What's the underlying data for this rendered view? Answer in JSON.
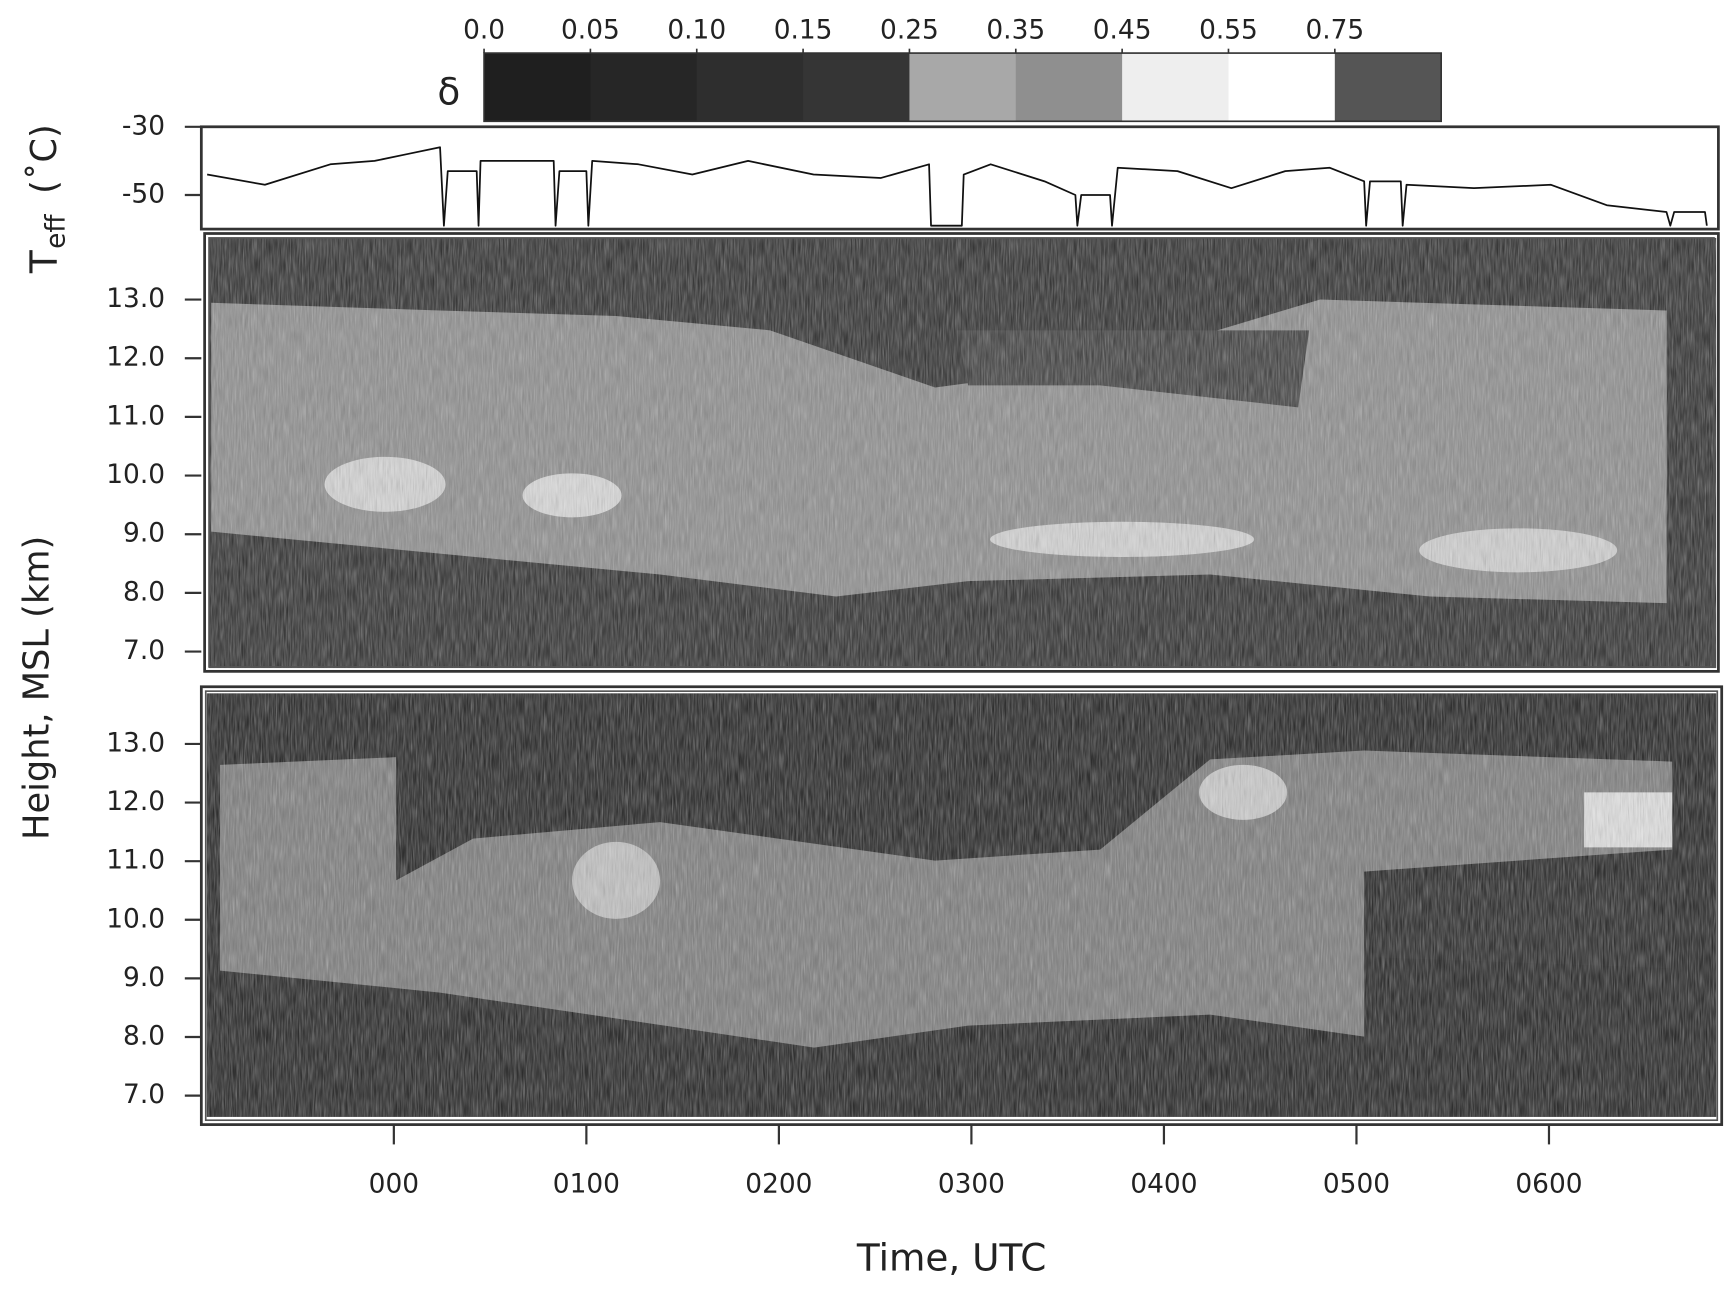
{
  "chart_data": [
    {
      "type": "line",
      "y_label": "T",
      "y_label_sub": "eff",
      "y_label_unit": "(˚C)",
      "color": "#111111",
      "xlim": [
        -1.0,
        6.88
      ],
      "ylim": [
        -60,
        -30
      ],
      "yticks": [
        -30,
        -50
      ],
      "x": [
        -0.97,
        -0.67,
        -0.33,
        -0.1,
        0.07,
        0.24,
        0.26,
        0.28,
        0.43,
        0.44,
        0.45,
        0.7,
        0.83,
        0.84,
        0.86,
        1.0,
        1.01,
        1.03,
        1.27,
        1.55,
        1.84,
        2.18,
        2.53,
        2.78,
        2.79,
        2.95,
        2.96,
        3.1,
        3.38,
        3.54,
        3.55,
        3.57,
        3.72,
        3.73,
        3.76,
        4.07,
        4.35,
        4.63,
        4.86,
        5.04,
        5.05,
        5.07,
        5.23,
        5.24,
        5.26,
        5.61,
        6.01,
        6.3,
        6.61,
        6.63,
        6.65,
        6.81,
        6.82
      ],
      "values": [
        -44,
        -47,
        -41,
        -40,
        -38,
        -36,
        -59,
        -43,
        -43,
        -59,
        -40,
        -40,
        -40,
        -59,
        -43,
        -43,
        -59,
        -40,
        -41,
        -44,
        -40,
        -44,
        -45,
        -41,
        -59,
        -59,
        -44,
        -41,
        -46,
        -50,
        -59,
        -50,
        -50,
        -59,
        -42,
        -43,
        -48,
        -43,
        -42,
        -46,
        -59,
        -46,
        -46,
        -59,
        -47,
        -48,
        -47,
        -53,
        -55,
        -59,
        -55,
        -55,
        -59
      ]
    },
    {
      "type": "image",
      "y_label": "Height, MSL (km)",
      "xlim": [
        -1.0,
        6.88
      ],
      "ylim": [
        6.7,
        14.07
      ],
      "yticks": [
        {
          "value": 13,
          "label": "13.0"
        },
        {
          "value": 12,
          "label": "12.0"
        },
        {
          "value": 11,
          "label": "11.0"
        },
        {
          "value": 10,
          "label": "10.0"
        },
        {
          "value": 9,
          "label": "9.0"
        },
        {
          "value": 8,
          "label": "8.0"
        },
        {
          "value": 7,
          "label": "7.0"
        }
      ],
      "colorbar": {
        "label": "δ",
        "ticks": [
          {
            "value": 0,
            "label": "0.0"
          },
          0.05,
          {
            "value": 0.1,
            "label": "0.10"
          },
          0.15,
          0.25,
          0.35,
          0.45,
          0.55,
          0.75
        ],
        "colors": [
          "#1f1f1f",
          "#262626",
          "#2e2e2e",
          "#353535",
          "#a8a8a8",
          "#8f8f8f",
          "#eeeeee",
          "#ffffff",
          "#555555"
        ]
      }
    },
    {
      "type": "image",
      "x_label": "Time, UTC",
      "xlim": [
        -1.0,
        6.88
      ],
      "ylim": [
        6.6,
        13.9
      ],
      "yticks": [
        {
          "value": 13,
          "label": "13.0"
        },
        {
          "value": 12,
          "label": "12.0"
        },
        {
          "value": 11,
          "label": "11.0"
        },
        {
          "value": 10,
          "label": "10.0"
        },
        {
          "value": 9,
          "label": "9.0"
        },
        {
          "value": 8,
          "label": "8.0"
        },
        {
          "value": 7,
          "label": "7.0"
        }
      ],
      "xticks": [
        {
          "value": 0,
          "label": "000"
        },
        {
          "value": 1,
          "label": "0100"
        },
        {
          "value": 2,
          "label": "0200"
        },
        {
          "value": 3,
          "label": "0300"
        },
        {
          "value": 4,
          "label": "0400"
        },
        {
          "value": 5,
          "label": "0500"
        },
        {
          "value": 6,
          "label": "0600"
        }
      ]
    }
  ]
}
